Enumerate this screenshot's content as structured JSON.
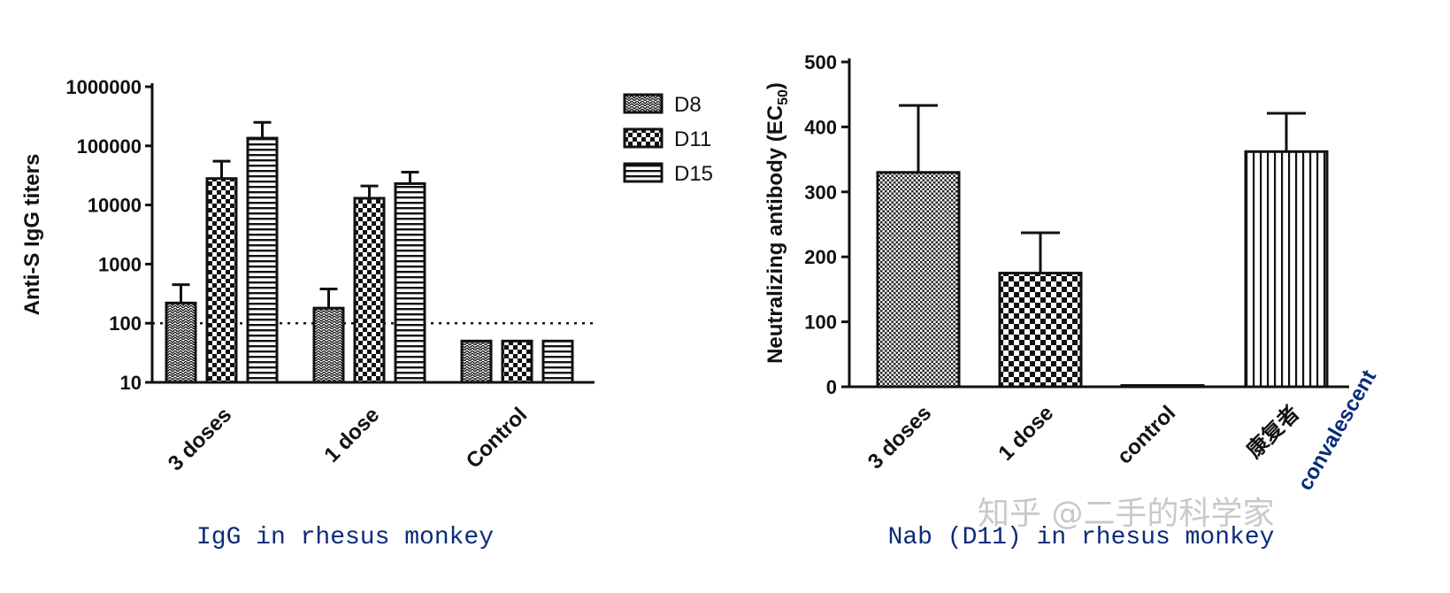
{
  "chart_data": [
    {
      "type": "bar",
      "scale": "log",
      "title": "IgG in rhesus monkey",
      "ylabel": "Anti-S IgG titers",
      "xlabel": "",
      "categories": [
        "3 doses",
        "1 dose",
        "Control"
      ],
      "series": [
        {
          "name": "D8",
          "values": [
            220,
            180,
            50
          ],
          "errors": [
            450,
            380,
            null
          ]
        },
        {
          "name": "D11",
          "values": [
            28000,
            13000,
            50
          ],
          "errors": [
            55000,
            21000,
            null
          ]
        },
        {
          "name": "D15",
          "values": [
            135000,
            23000,
            50
          ],
          "errors": [
            250000,
            36000,
            null
          ]
        }
      ],
      "yticks": [
        10,
        100,
        1000,
        10000,
        100000,
        1000000
      ],
      "ytick_labels": [
        "10",
        "100",
        "1000",
        "10000",
        "100000",
        "1000000"
      ],
      "ylim": [
        10,
        1000000
      ],
      "reference_line": 100,
      "legend": [
        "D8",
        "D11",
        "D15"
      ],
      "legend_position": "right"
    },
    {
      "type": "bar",
      "title": "Nab (D11) in rhesus monkey",
      "ylabel": "Neutralizing antibody (EC",
      "ylabel_sub": "50",
      "ylabel_end": ")",
      "xlabel": "",
      "categories": [
        "3 doses",
        "1 dose",
        "control",
        "康复者"
      ],
      "category_extra": "convalescent",
      "values": [
        330,
        175,
        2,
        362
      ],
      "errors": [
        433,
        237,
        null,
        421
      ],
      "yticks": [
        0,
        100,
        200,
        300,
        400,
        500
      ],
      "ytick_labels": [
        "0",
        "100",
        "200",
        "300",
        "400",
        "500"
      ],
      "ylim": [
        0,
        500
      ]
    }
  ],
  "watermark": "知乎 @二手的科学家"
}
